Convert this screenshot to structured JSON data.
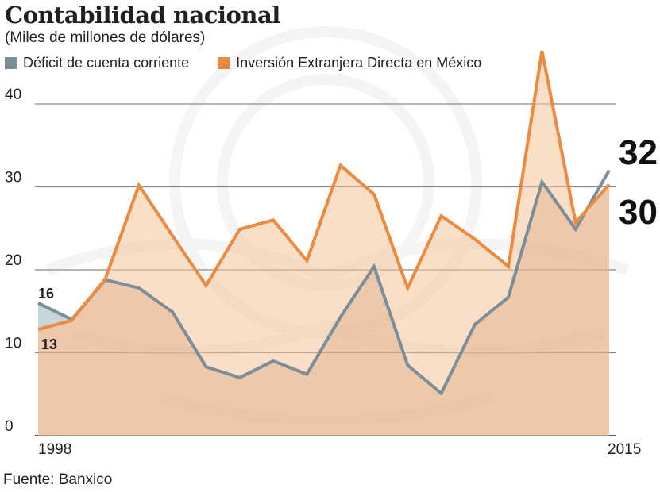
{
  "chart_data": {
    "type": "area",
    "title": "Contabilidad nacional",
    "subtitle": "(Miles de millones de dólares)",
    "x": [
      1998,
      1999,
      2000,
      2001,
      2002,
      2003,
      2004,
      2005,
      2006,
      2007,
      2008,
      2009,
      2010,
      2011,
      2012,
      2013,
      2014,
      2015
    ],
    "x_tick_labels": [
      "1998",
      "2015"
    ],
    "ylim": [
      0,
      40
    ],
    "yticks": [
      "0",
      "10",
      "20",
      "30",
      "40"
    ],
    "series": [
      {
        "name": "Déficit de cuenta corriente",
        "color": "#7b8e99",
        "values": [
          16,
          14,
          18.8,
          17.8,
          14.9,
          8.3,
          7,
          9,
          7.4,
          14.3,
          20.4,
          8.5,
          5.1,
          13.4,
          16.7,
          30.6,
          24.9,
          32
        ]
      },
      {
        "name": "Inversión Extranjera Directa en México",
        "color": "#ec8a3f",
        "values": [
          12.8,
          13.9,
          18.9,
          30.2,
          24.1,
          18.1,
          24.9,
          26,
          21.1,
          32.6,
          29.1,
          17.8,
          26.5,
          23.7,
          20.4,
          46.4,
          25.7,
          30.3
        ]
      }
    ],
    "start_labels": [
      "16",
      "13"
    ],
    "end_labels": [
      "32",
      "30"
    ],
    "source": "Fuente: Banxico"
  },
  "colors": {
    "accent_orange": "#ec8a3f",
    "area_fill": "#f6c59b",
    "deficit_line": "#7b8e99",
    "deficit_fill": "#aec3cb",
    "gridline": "#8a8a8a"
  }
}
